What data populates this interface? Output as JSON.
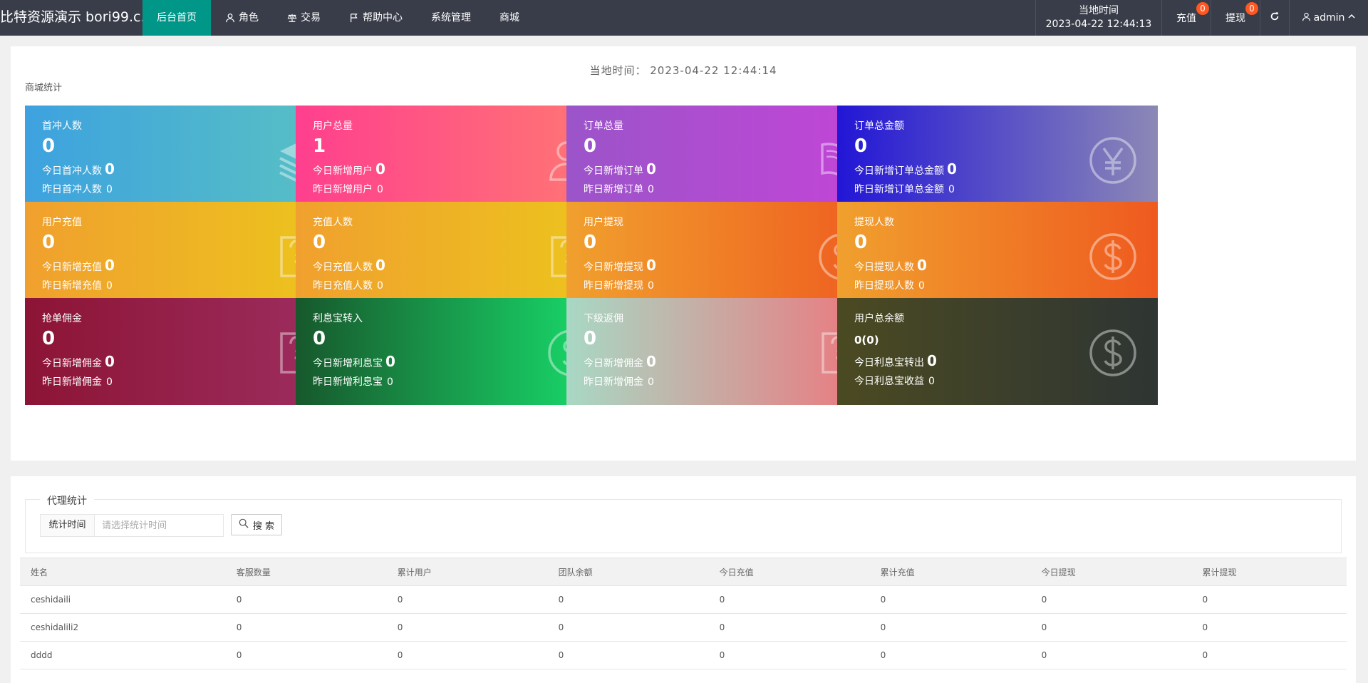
{
  "header": {
    "brand": "比特资源演示 bori99.c...",
    "nav": [
      {
        "label": "后台首页",
        "icon": "",
        "active": true
      },
      {
        "label": "角色",
        "icon": "user-icon",
        "active": false
      },
      {
        "label": "交易",
        "icon": "scale-icon",
        "active": false
      },
      {
        "label": "帮助中心",
        "icon": "flag-icon",
        "active": false
      },
      {
        "label": "系统管理",
        "icon": "",
        "active": false
      },
      {
        "label": "商城",
        "icon": "",
        "active": false
      }
    ],
    "time_label": "当地时间",
    "time_value": "2023-04-22 12:44:13",
    "recharge_label": "充值",
    "recharge_badge": "0",
    "withdraw_label": "提现",
    "withdraw_badge": "0",
    "admin_label": "admin"
  },
  "mall": {
    "time_label": "当地时间：",
    "time_value": "2023-04-22 12:44:14",
    "section_title": "商城统计",
    "cards": [
      {
        "title": "首冲人数",
        "value": "0",
        "line1_label": "今日首冲人数",
        "line1_value": "0",
        "line2_label": "昨日首冲人数",
        "line2_value": "0",
        "icon": "layers-icon",
        "gradient": [
          "#3da2df",
          "#5ac2c2"
        ]
      },
      {
        "title": "用户总量",
        "value": "1",
        "line1_label": "今日新增用户",
        "line1_value": "0",
        "line2_label": "昨日新增用户",
        "line2_value": "0",
        "icon": "users-icon",
        "gradient": [
          "#ff3f8e",
          "#ff7a72"
        ]
      },
      {
        "title": "订单总量",
        "value": "0",
        "line1_label": "今日新增订单",
        "line1_value": "0",
        "line2_label": "昨日新增订单",
        "line2_value": "0",
        "icon": "book-icon",
        "gradient": [
          "#9b54c9",
          "#c544d8"
        ]
      },
      {
        "title": "订单总金额",
        "value": "0",
        "line1_label": "今日新增订单总金额",
        "line1_value": "0",
        "line2_label": "昨日新增订单总金额",
        "line2_value": "0",
        "icon": "yen-icon",
        "gradient": [
          "#2216d6",
          "#8c88b6"
        ]
      },
      {
        "title": "用户充值",
        "value": "0",
        "line1_label": "今日新增充值",
        "line1_value": "0",
        "line2_label": "昨日新增充值",
        "line2_value": "0",
        "icon": "note-edit-icon",
        "gradient": [
          "#f0a02e",
          "#ecc61c"
        ]
      },
      {
        "title": "充值人数",
        "value": "0",
        "line1_label": "今日充值人数",
        "line1_value": "0",
        "line2_label": "昨日充值人数",
        "line2_value": "0",
        "icon": "note-edit-icon",
        "gradient": [
          "#f0a02e",
          "#ecc61c"
        ]
      },
      {
        "title": "用户提现",
        "value": "0",
        "line1_label": "今日新增提现",
        "line1_value": "0",
        "line2_label": "昨日新增提现",
        "line2_value": "0",
        "icon": "dollar-icon",
        "gradient": [
          "#f0a02e",
          "#ef5a1f"
        ]
      },
      {
        "title": "提现人数",
        "value": "0",
        "line1_label": "今日提现人数",
        "line1_value": "0",
        "line2_label": "昨日提现人数",
        "line2_value": "0",
        "icon": "dollar-icon",
        "gradient": [
          "#f0a02e",
          "#ef5a1f"
        ]
      },
      {
        "title": "抢单佣金",
        "value": "0",
        "line1_label": "今日新增佣金",
        "line1_value": "0",
        "line2_label": "昨日新增佣金",
        "line2_value": "0",
        "icon": "note-edit-icon",
        "gradient": [
          "#8c1435",
          "#9e2f62"
        ]
      },
      {
        "title": "利息宝转入",
        "value": "0",
        "line1_label": "今日新增利息宝",
        "line1_value": "0",
        "line2_label": "昨日新增利息宝",
        "line2_value": "0",
        "icon": "dollar-icon",
        "gradient": [
          "#17582c",
          "#19e36f"
        ]
      },
      {
        "title": "下级返佣",
        "value": "0",
        "line1_label": "今日新增佣金",
        "line1_value": "0",
        "line2_label": "昨日新增佣金",
        "line2_value": "0",
        "icon": "note-edit-icon",
        "gradient": [
          "#a8d8c4",
          "#f0727a"
        ]
      },
      {
        "title": "用户总余额",
        "value": "0(0)",
        "line1_label": "今日利息宝转出",
        "line1_value": "0",
        "line2_label": "今日利息宝收益",
        "line2_value": "0",
        "icon": "dollar-icon",
        "gradient": [
          "#4b4a22",
          "#2e3533"
        ]
      }
    ]
  },
  "agent": {
    "legend": "代理统计",
    "filter_label": "统计时间",
    "filter_placeholder": "请选择统计时间",
    "search_label": "搜 索",
    "columns": [
      "姓名",
      "客服数量",
      "累计用户",
      "团队余额",
      "今日充值",
      "累计充值",
      "今日提现",
      "累计提现"
    ],
    "rows": [
      [
        "ceshidaili",
        "0",
        "0",
        "0",
        "0",
        "0",
        "0",
        "0"
      ],
      [
        "ceshidalili2",
        "0",
        "0",
        "0",
        "0",
        "0",
        "0",
        "0"
      ],
      [
        "dddd",
        "0",
        "0",
        "0",
        "0",
        "0",
        "0",
        "0"
      ]
    ]
  }
}
